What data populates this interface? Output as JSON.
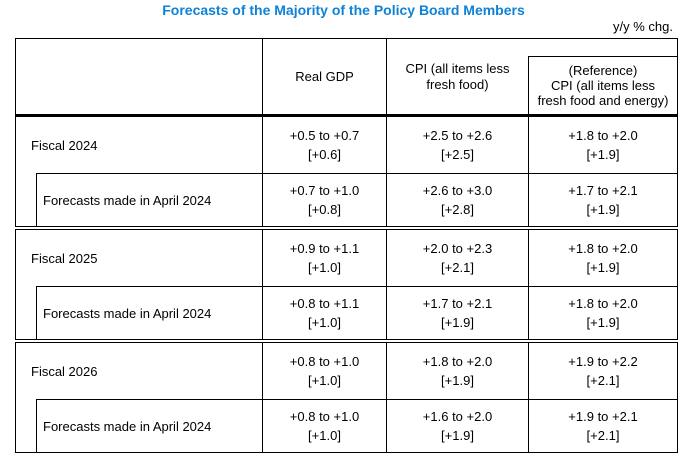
{
  "page": {
    "title": "Forecasts of the Majority of the Policy Board Members",
    "unit_note": "y/y % chg.",
    "accent_color": "#0e82d6"
  },
  "table": {
    "col_headers": {
      "real_gdp": "Real GDP",
      "cpi": "CPI (all items less\nfresh food)",
      "cpi_reference": "(Reference)\nCPI (all items less\nfresh food and energy)"
    },
    "groups": [
      {
        "label": "Fiscal 2024",
        "values": [
          "+0.5 to +0.7\n[+0.6]",
          "+2.5 to +2.6\n[+2.5]",
          "+1.8 to +2.0\n[+1.9]"
        ],
        "sub_label": "Forecasts made in April 2024",
        "sub_values": [
          "+0.7 to +1.0\n[+0.8]",
          "+2.6 to +3.0\n[+2.8]",
          "+1.7 to +2.1\n[+1.9]"
        ]
      },
      {
        "label": "Fiscal 2025",
        "values": [
          "+0.9 to +1.1\n[+1.0]",
          "+2.0 to +2.3\n[+2.1]",
          "+1.8 to +2.0\n[+1.9]"
        ],
        "sub_label": "Forecasts made in April 2024",
        "sub_values": [
          "+0.8 to +1.1\n[+1.0]",
          "+1.7 to +2.1\n[+1.9]",
          "+1.8 to +2.0\n[+1.9]"
        ]
      },
      {
        "label": "Fiscal 2026",
        "values": [
          "+0.8 to +1.0\n[+1.0]",
          "+1.8 to +2.0\n[+1.9]",
          "+1.9 to +2.2\n[+2.1]"
        ],
        "sub_label": "Forecasts made in April 2024",
        "sub_values": [
          "+0.8 to +1.0\n[+1.0]",
          "+1.6 to +2.0\n[+1.9]",
          "+1.9 to +2.1\n[+2.1]"
        ]
      }
    ]
  }
}
